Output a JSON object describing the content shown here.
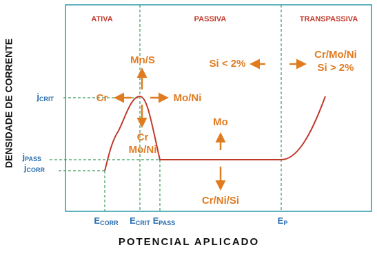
{
  "regions": [
    "ATIVA",
    "PASSIVA",
    "TRANSPASSIVA"
  ],
  "y_label": "DENSIDADE DE CORRENTE",
  "x_label": "POTENCIAL APLICADO",
  "y_levels": [
    {
      "main": "j",
      "sub": "CRIT"
    },
    {
      "main": "j",
      "sub": "PASS"
    },
    {
      "main": "j",
      "sub": "CORR"
    }
  ],
  "x_levels": [
    {
      "main": "E",
      "sub": "CORR"
    },
    {
      "main": "E",
      "sub": "CRIT"
    },
    {
      "main": "E",
      "sub": "PASS"
    },
    {
      "main": "E",
      "sub": "P"
    }
  ],
  "effects": {
    "up_crit": "Mn/S",
    "left_crit": "Cr",
    "right_crit": "Mo/Ni",
    "down_crit_1": "Cr",
    "down_crit_2": "Mo/Ni",
    "up_pass": "Mo",
    "down_pass": "Cr/Ni/Si",
    "left_trans": "Si < 2%",
    "right_trans_1": "Cr/Mo/Ni",
    "right_trans_2": "Si > 2%"
  }
}
